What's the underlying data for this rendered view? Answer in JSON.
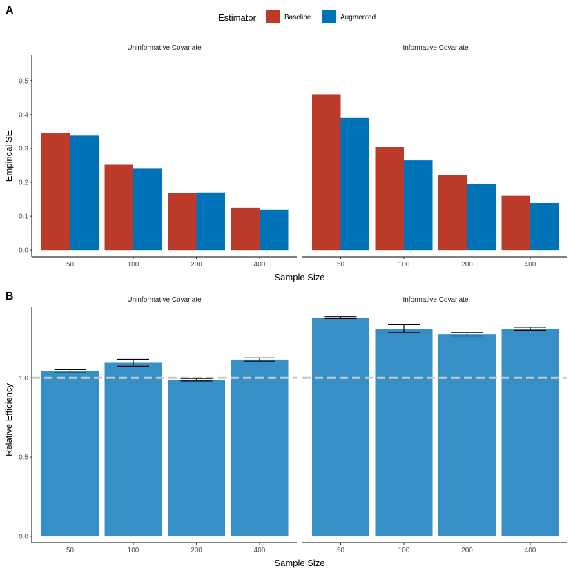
{
  "legend": {
    "title": "Estimator",
    "items": [
      {
        "label": "Baseline",
        "color": "#BB3A2A"
      },
      {
        "label": "Augmented",
        "color": "#0072B8"
      }
    ]
  },
  "chart_data": [
    {
      "panel": "A",
      "type": "bar",
      "xlabel": "Sample Size",
      "ylabel": "Empirical SE",
      "categories": [
        "50",
        "100",
        "200",
        "400"
      ],
      "ylim": [
        -0.02,
        0.575
      ],
      "yticks": [
        0.0,
        0.1,
        0.2,
        0.3,
        0.4,
        0.5
      ],
      "ytick_labels": [
        "0.0",
        "0.1",
        "0.2",
        "0.3",
        "0.4",
        "0.5"
      ],
      "facets": [
        {
          "title": "Uninformative Covariate",
          "series": [
            {
              "name": "Baseline",
              "values": [
                0.345,
                0.252,
                0.169,
                0.125
              ]
            },
            {
              "name": "Augmented",
              "values": [
                0.338,
                0.24,
                0.17,
                0.119
              ]
            }
          ]
        },
        {
          "title": "Informative Covariate",
          "series": [
            {
              "name": "Baseline",
              "values": [
                0.46,
                0.304,
                0.222,
                0.16
              ]
            },
            {
              "name": "Augmented",
              "values": [
                0.39,
                0.265,
                0.196,
                0.139
              ]
            }
          ]
        }
      ]
    },
    {
      "panel": "B",
      "type": "bar",
      "xlabel": "Sample Size",
      "ylabel": "Relative Efficiency",
      "categories": [
        "50",
        "100",
        "200",
        "400"
      ],
      "ylim": [
        -0.04,
        1.45
      ],
      "yticks": [
        0.0,
        0.5,
        1.0
      ],
      "ytick_labels": [
        "0.0",
        "0.5",
        "1.0"
      ],
      "bar_color": "#3690C6",
      "reference_line": 1.0,
      "facets": [
        {
          "title": "Uninformative Covariate",
          "values": [
            1.041,
            1.095,
            0.988,
            1.115
          ],
          "error_low": [
            1.031,
            1.074,
            0.98,
            1.105
          ],
          "error_high": [
            1.052,
            1.117,
            0.996,
            1.126
          ]
        },
        {
          "title": "Informative Covariate",
          "values": [
            1.38,
            1.31,
            1.275,
            1.31
          ],
          "error_low": [
            1.374,
            1.285,
            1.265,
            1.3
          ],
          "error_high": [
            1.386,
            1.335,
            1.285,
            1.32
          ]
        }
      ]
    }
  ]
}
